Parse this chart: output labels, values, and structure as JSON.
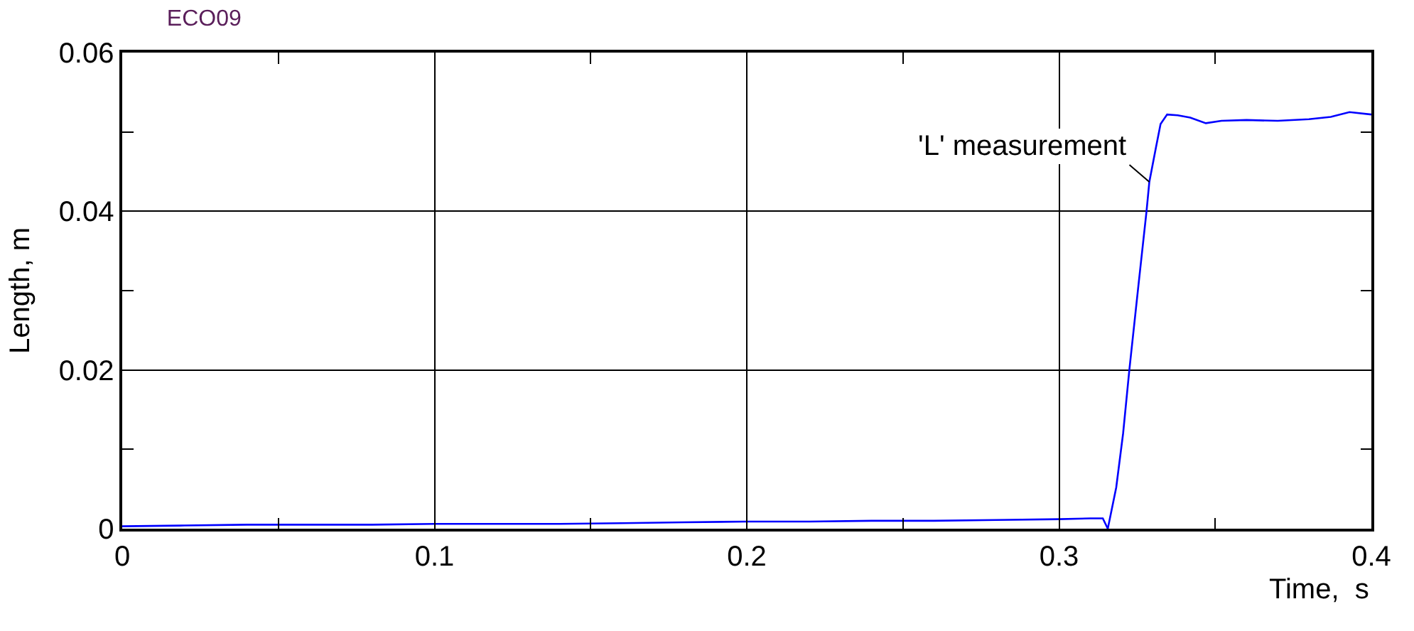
{
  "chart_data": {
    "type": "line",
    "title": "ECO09",
    "xlabel": "Time,  s",
    "ylabel": "Length, m",
    "x": [
      0,
      0.02,
      0.04,
      0.06,
      0.08,
      0.1,
      0.12,
      0.14,
      0.16,
      0.18,
      0.2,
      0.22,
      0.24,
      0.26,
      0.28,
      0.3,
      0.31,
      0.314,
      0.3156,
      0.3183,
      0.3205,
      0.3225,
      0.3255,
      0.328,
      0.3289,
      0.331,
      0.3325,
      0.3346,
      0.338,
      0.342,
      0.347,
      0.352,
      0.36,
      0.37,
      0.38,
      0.387,
      0.393,
      0.4
    ],
    "series": [
      {
        "color": "#0000ff",
        "values": [
          0.0003,
          0.0004,
          0.0005,
          0.0005,
          0.0005,
          0.0006,
          0.0006,
          0.0006,
          0.0007,
          0.0008,
          0.0009,
          0.0009,
          0.001,
          0.001,
          0.0011,
          0.0012,
          0.0013,
          0.0013,
          0.0,
          0.0052,
          0.012,
          0.02,
          0.031,
          0.04,
          0.0437,
          0.048,
          0.051,
          0.0522,
          0.0521,
          0.0518,
          0.0511,
          0.0514,
          0.0515,
          0.0514,
          0.0516,
          0.0519,
          0.0525,
          0.0522
        ]
      }
    ],
    "xlim": [
      0,
      0.4
    ],
    "xticks": [
      0,
      0.1,
      0.2,
      0.3,
      0.4,
      {
        "value": 0.05,
        "label": null
      },
      {
        "value": 0.15,
        "label": null
      },
      {
        "value": 0.25,
        "label": null
      },
      {
        "value": 0.35,
        "label": null
      }
    ],
    "ylim": [
      0,
      0.06
    ],
    "yticks": [
      0,
      0.02,
      0.04,
      0.06,
      {
        "value": 0.01,
        "label": null
      },
      {
        "value": 0.03,
        "label": null
      },
      {
        "value": 0.05,
        "label": null
      }
    ],
    "grid": true,
    "marker": "none",
    "line_style": "solid",
    "annotations": [
      {
        "text": "'L' measurement",
        "x": 0.3289,
        "y": 0.0437
      }
    ]
  }
}
